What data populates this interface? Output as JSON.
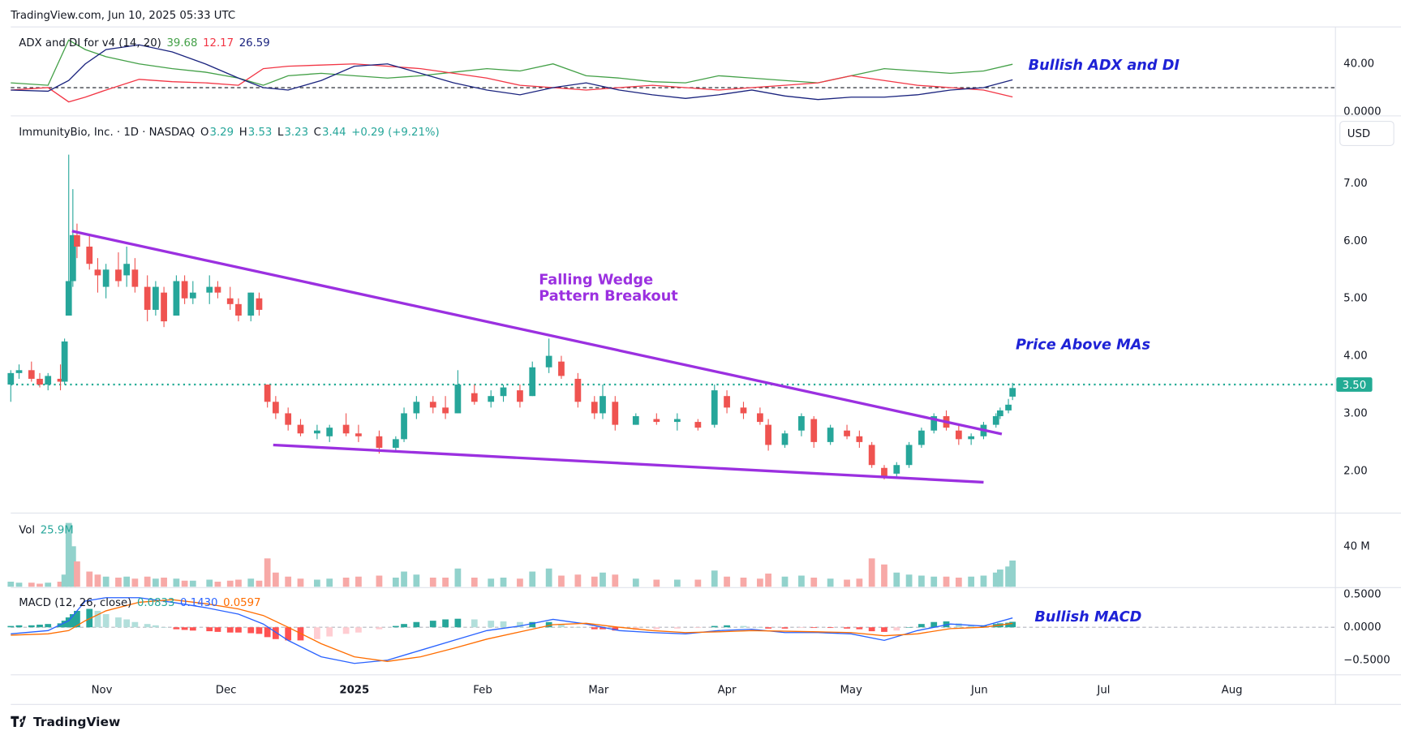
{
  "header": "TradingView.com, Jun 10, 2025 05:33 UTC",
  "footer": "TradingView",
  "chart_data": [
    {
      "type": "line",
      "title": "ADX and DI for v4 (14, 20)",
      "x": [
        9,
        18,
        23,
        27,
        32,
        40,
        48,
        56,
        64,
        70,
        76,
        84,
        92,
        100,
        108,
        116,
        124,
        132,
        140,
        148,
        156,
        164,
        172,
        180,
        188,
        196,
        204,
        212,
        220,
        228,
        236,
        244,
        251
      ],
      "series": [
        {
          "color": "#43a047",
          "values": [
            24,
            22,
            60,
            52,
            46,
            40,
            36,
            33,
            28,
            22,
            30,
            32,
            30,
            28,
            30,
            33,
            36,
            34,
            40,
            30,
            28,
            25,
            24,
            30,
            28,
            26,
            24,
            30,
            36,
            34,
            32,
            34,
            39.68
          ],
          "last_label": "39.68"
        },
        {
          "color": "#f23645",
          "values": [
            18,
            20,
            8,
            12,
            18,
            27,
            25,
            24,
            22,
            36,
            38,
            39,
            40,
            38,
            36,
            32,
            28,
            22,
            20,
            18,
            20,
            22,
            20,
            18,
            20,
            22,
            24,
            30,
            26,
            22,
            20,
            18,
            12.17
          ],
          "last_label": "12.17"
        },
        {
          "color": "#1a237e",
          "values": [
            18,
            17,
            26,
            40,
            52,
            56,
            50,
            40,
            28,
            20,
            18,
            26,
            38,
            40,
            32,
            24,
            18,
            14,
            20,
            24,
            18,
            14,
            11,
            14,
            18,
            13,
            10,
            12,
            12,
            14,
            18,
            20,
            26.59
          ],
          "last_label": "26.59"
        }
      ],
      "ylim": [
        -3,
        71
      ],
      "yticks": [
        {
          "value": 0,
          "label": "0.0000"
        },
        {
          "value": 40,
          "label": "40.00"
        }
      ],
      "hline": 20,
      "annotation": "Bullish ADX and DI"
    },
    {
      "type": "candlestick",
      "title": "ImmunityBio, Inc. · 1D · NASDAQ",
      "legend_keys": [
        "O",
        "H",
        "L",
        "C"
      ],
      "legend_values": [
        "3.29",
        "3.53",
        "3.23",
        "3.44"
      ],
      "change": "+0.29 (+9.21%)",
      "currency": "USD",
      "x": [
        9,
        11,
        14,
        16,
        18,
        21,
        22,
        23,
        24,
        25,
        28,
        30,
        32,
        35,
        37,
        39,
        42,
        44,
        46,
        49,
        51,
        53,
        57,
        59,
        62,
        64,
        67,
        69,
        71,
        73,
        76,
        79,
        83,
        86,
        90,
        93,
        98,
        102,
        104,
        107,
        111,
        114,
        117,
        121,
        125,
        128,
        132,
        135,
        139,
        142,
        146,
        150,
        152,
        155,
        160,
        165,
        170,
        175,
        179,
        182,
        186,
        190,
        192,
        196,
        200,
        203,
        207,
        211,
        214,
        217,
        220,
        223,
        226,
        229,
        232,
        235,
        238,
        241,
        244,
        247,
        248,
        250,
        251
      ],
      "open": [
        3.5,
        3.7,
        3.75,
        3.6,
        3.5,
        3.6,
        3.55,
        4.7,
        5.3,
        6.1,
        5.9,
        5.5,
        5.2,
        5.5,
        5.4,
        5.5,
        5.2,
        4.8,
        5.1,
        4.7,
        5.3,
        5.0,
        5.1,
        5.2,
        5.0,
        4.9,
        4.7,
        5.0,
        3.5,
        3.2,
        3.0,
        2.8,
        2.65,
        2.6,
        2.8,
        2.65,
        2.6,
        2.4,
        2.55,
        3.0,
        3.2,
        3.1,
        3.0,
        3.35,
        3.2,
        3.3,
        3.4,
        3.3,
        3.8,
        3.9,
        3.6,
        3.2,
        3.0,
        3.2,
        2.8,
        2.9,
        2.85,
        2.85,
        2.8,
        3.3,
        3.1,
        3.0,
        2.8,
        2.45,
        2.7,
        2.9,
        2.5,
        2.7,
        2.6,
        2.45,
        2.05,
        1.95,
        2.1,
        2.45,
        2.7,
        2.95,
        2.7,
        2.55,
        2.6,
        2.8,
        2.95,
        3.05,
        3.29
      ],
      "high": [
        3.75,
        3.85,
        3.9,
        3.7,
        3.7,
        3.85,
        4.3,
        7.5,
        6.9,
        6.3,
        6.1,
        5.7,
        5.6,
        5.8,
        5.9,
        5.7,
        5.4,
        5.3,
        5.2,
        5.4,
        5.4,
        5.3,
        5.4,
        5.3,
        5.2,
        5.0,
        5.1,
        5.1,
        3.5,
        3.3,
        3.1,
        2.9,
        2.8,
        2.8,
        3.0,
        2.8,
        2.7,
        2.6,
        3.1,
        3.3,
        3.3,
        3.3,
        3.75,
        3.5,
        3.4,
        3.5,
        3.5,
        3.9,
        4.3,
        4.0,
        3.7,
        3.3,
        3.5,
        3.3,
        3.0,
        3.0,
        3.0,
        2.9,
        3.5,
        3.4,
        3.2,
        3.1,
        2.9,
        2.7,
        3.0,
        2.95,
        2.8,
        2.8,
        2.7,
        2.5,
        2.1,
        2.15,
        2.5,
        2.75,
        3.0,
        3.05,
        2.8,
        2.65,
        2.85,
        3.0,
        3.1,
        3.25,
        3.53
      ],
      "low": [
        3.2,
        3.6,
        3.55,
        3.45,
        3.4,
        3.4,
        3.5,
        4.7,
        5.2,
        5.7,
        5.5,
        5.1,
        5.0,
        5.2,
        5.2,
        5.1,
        4.6,
        4.7,
        4.5,
        4.7,
        4.9,
        4.9,
        4.9,
        5.0,
        4.8,
        4.6,
        4.6,
        4.7,
        3.1,
        2.9,
        2.7,
        2.6,
        2.55,
        2.5,
        2.6,
        2.5,
        2.3,
        2.35,
        2.5,
        2.9,
        3.0,
        2.9,
        3.0,
        3.15,
        3.1,
        3.2,
        3.1,
        3.3,
        3.7,
        3.6,
        3.1,
        2.9,
        2.9,
        2.7,
        2.8,
        2.8,
        2.7,
        2.7,
        2.75,
        3.0,
        2.9,
        2.8,
        2.35,
        2.4,
        2.6,
        2.4,
        2.45,
        2.55,
        2.4,
        2.05,
        1.85,
        1.9,
        2.05,
        2.4,
        2.65,
        2.7,
        2.45,
        2.45,
        2.55,
        2.75,
        2.9,
        3.0,
        3.23
      ],
      "close": [
        3.7,
        3.75,
        3.6,
        3.5,
        3.65,
        3.55,
        4.25,
        5.3,
        6.1,
        5.9,
        5.6,
        5.4,
        5.5,
        5.3,
        5.6,
        5.2,
        4.8,
        5.2,
        4.6,
        5.3,
        5.0,
        5.1,
        5.2,
        5.1,
        4.9,
        4.7,
        5.1,
        4.8,
        3.2,
        3.0,
        2.8,
        2.65,
        2.7,
        2.75,
        2.65,
        2.6,
        2.4,
        2.55,
        3.0,
        3.2,
        3.1,
        3.0,
        3.5,
        3.2,
        3.3,
        3.45,
        3.2,
        3.8,
        4.0,
        3.65,
        3.2,
        3.0,
        3.3,
        2.8,
        2.95,
        2.85,
        2.9,
        2.75,
        3.4,
        3.1,
        3.0,
        2.85,
        2.45,
        2.65,
        2.95,
        2.5,
        2.75,
        2.6,
        2.5,
        2.1,
        1.9,
        2.1,
        2.45,
        2.7,
        2.95,
        2.75,
        2.55,
        2.6,
        2.8,
        2.95,
        3.05,
        3.15,
        3.44
      ],
      "up_color": "#26a69a",
      "down_color": "#ef5350",
      "xlim": [
        9,
        329
      ],
      "xticks": [
        {
          "value": 31,
          "label": "Nov"
        },
        {
          "value": 61,
          "label": "Dec"
        },
        {
          "value": 92,
          "label": "2025",
          "bold": true
        },
        {
          "value": 123,
          "label": "Feb"
        },
        {
          "value": 151,
          "label": "Mar"
        },
        {
          "value": 182,
          "label": "Apr"
        },
        {
          "value": 212,
          "label": "May"
        },
        {
          "value": 243,
          "label": "Jun"
        },
        {
          "value": 273,
          "label": "Jul"
        },
        {
          "value": 304,
          "label": "Aug"
        }
      ],
      "ylim": [
        1.28,
        8.08
      ],
      "yticks": [
        {
          "value": 2,
          "label": "2.00"
        },
        {
          "value": 3,
          "label": "3.00"
        },
        {
          "value": 4,
          "label": "4.00"
        },
        {
          "value": 5,
          "label": "5.00"
        },
        {
          "value": 6,
          "label": "6.00"
        },
        {
          "value": 7,
          "label": "7.00"
        }
      ],
      "level": {
        "value": 3.5,
        "label": "3.50"
      },
      "trendlines": [
        {
          "x": [
            23.8,
            248.4
          ],
          "y": [
            6.17,
            2.64
          ]
        },
        {
          "x": [
            72.4,
            244
          ],
          "y": [
            2.45,
            1.8
          ]
        }
      ],
      "trendline_color": "#9b30e0",
      "annotations": [
        "Falling Wedge",
        "Pattern Breakout",
        "Price Above MAs"
      ]
    },
    {
      "type": "bar",
      "title": "Vol",
      "values": [
        5,
        4,
        4,
        3,
        4,
        5,
        12,
        63,
        40,
        25,
        15,
        12,
        10,
        9,
        10,
        8,
        10,
        8,
        9,
        8,
        6,
        6,
        7,
        5,
        6,
        7,
        8,
        6,
        28,
        14,
        10,
        8,
        7,
        8,
        9,
        10,
        11,
        9,
        15,
        12,
        9,
        9,
        18,
        9,
        8,
        9,
        8,
        15,
        18,
        11,
        12,
        10,
        14,
        12,
        8,
        7,
        7,
        7,
        16,
        10,
        9,
        8,
        13,
        10,
        11,
        9,
        8,
        7,
        8,
        28,
        22,
        14,
        12,
        11,
        10,
        10,
        9,
        10,
        11,
        14,
        17,
        20,
        25.9
      ],
      "value_label": "25.9M",
      "ylim": [
        0,
        71
      ],
      "yticks": [
        {
          "value": 40,
          "label": "40 M"
        }
      ]
    },
    {
      "type": "macd",
      "title": "MACD (12, 26, close)",
      "x": [
        9,
        18,
        23,
        27,
        32,
        40,
        48,
        56,
        64,
        70,
        76,
        84,
        92,
        100,
        108,
        116,
        124,
        132,
        140,
        148,
        156,
        164,
        172,
        180,
        188,
        196,
        204,
        212,
        220,
        228,
        236,
        244,
        251
      ],
      "histogram": {
        "values": [
          0.02,
          0.03,
          0.03,
          0.04,
          0.05,
          0.06,
          0.1,
          0.15,
          0.2,
          0.25,
          0.28,
          0.25,
          0.2,
          0.15,
          0.12,
          0.08,
          0.05,
          0.03,
          0.0,
          -0.03,
          -0.04,
          -0.05,
          -0.06,
          -0.07,
          -0.08,
          -0.08,
          -0.09,
          -0.1,
          -0.15,
          -0.18,
          -0.2,
          -0.2,
          -0.18,
          -0.14,
          -0.1,
          -0.08,
          -0.03,
          0.02,
          0.05,
          0.08,
          0.1,
          0.12,
          0.13,
          0.12,
          0.1,
          0.09,
          0.08,
          0.08,
          0.08,
          0.04,
          0.0,
          -0.03,
          -0.03,
          -0.05,
          -0.04,
          -0.03,
          -0.02,
          -0.01,
          0.02,
          0.03,
          0.02,
          0.0,
          -0.02,
          -0.02,
          -0.01,
          -0.01,
          -0.01,
          -0.02,
          -0.03,
          -0.06,
          -0.07,
          -0.05,
          0.0,
          0.05,
          0.08,
          0.09,
          0.06,
          0.03,
          0.03,
          0.05,
          0.06,
          0.07,
          0.0833
        ],
        "last_label": "0.0833"
      },
      "series": [
        {
          "color": "#2962ff",
          "values": [
            -0.1,
            -0.05,
            0.1,
            0.4,
            0.45,
            0.45,
            0.38,
            0.3,
            0.2,
            0.05,
            -0.2,
            -0.45,
            -0.55,
            -0.5,
            -0.35,
            -0.2,
            -0.05,
            0.02,
            0.12,
            0.05,
            -0.05,
            -0.08,
            -0.1,
            -0.05,
            -0.03,
            -0.08,
            -0.08,
            -0.1,
            -0.2,
            -0.05,
            0.05,
            0.02,
            0.143
          ],
          "last_label": "0.1430"
        },
        {
          "color": "#ff6d00",
          "values": [
            -0.12,
            -0.1,
            -0.05,
            0.1,
            0.25,
            0.38,
            0.42,
            0.36,
            0.28,
            0.18,
            0.0,
            -0.25,
            -0.45,
            -0.52,
            -0.45,
            -0.32,
            -0.18,
            -0.07,
            0.04,
            0.06,
            0.0,
            -0.05,
            -0.08,
            -0.07,
            -0.05,
            -0.06,
            -0.07,
            -0.08,
            -0.13,
            -0.1,
            -0.02,
            0.0,
            0.0597
          ],
          "last_label": "0.0597"
        }
      ],
      "ylim": [
        -0.71,
        0.59
      ],
      "yticks": [
        {
          "value": 0.5,
          "label": "0.5000"
        },
        {
          "value": 0,
          "label": "0.0000"
        },
        {
          "value": -0.5,
          "label": "−0.5000"
        }
      ],
      "annotation": "Bullish MACD"
    }
  ]
}
